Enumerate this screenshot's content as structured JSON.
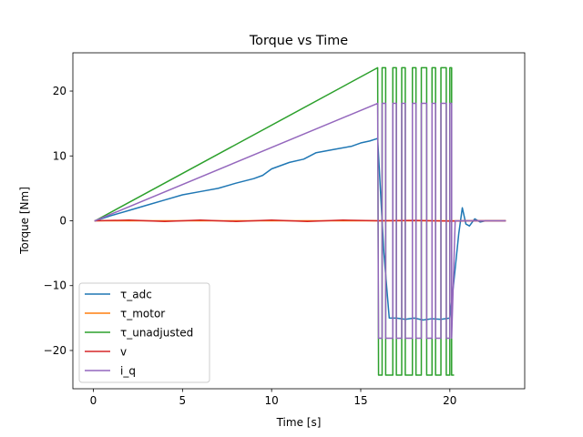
{
  "chart_data": {
    "type": "line",
    "title": "Torque vs Time",
    "xlabel": "Time [s]",
    "ylabel": "Torque [Nm]",
    "xlim": [
      -1.15,
      24.2
    ],
    "ylim": [
      -25.9,
      25.9
    ],
    "x_ticks": [
      0,
      5,
      10,
      15,
      20
    ],
    "y_ticks": [
      -20,
      -10,
      0,
      10,
      20
    ],
    "x_tick_labels": [
      "0",
      "5",
      "10",
      "15",
      "20"
    ],
    "y_tick_labels": [
      "−20",
      "−10",
      "0",
      "10",
      "20"
    ],
    "grid": false,
    "legend_position": "lower-left",
    "series": [
      {
        "name": "τ_adc",
        "color": "#1f77b4",
        "x": [
          0.1,
          1.0,
          2.0,
          3.0,
          4.0,
          5.0,
          6.0,
          7.0,
          8.0,
          9.0,
          9.5,
          10.0,
          11.0,
          11.8,
          12.5,
          13.5,
          14.5,
          15.0,
          15.5,
          15.95,
          16.1,
          16.3,
          16.6,
          17.0,
          17.5,
          18.0,
          18.5,
          19.0,
          19.5,
          20.0,
          20.2,
          20.5,
          20.7,
          20.9,
          21.1,
          21.4,
          21.7,
          22.0,
          22.5,
          23.1
        ],
        "y": [
          0,
          0.8,
          1.6,
          2.4,
          3.2,
          4.0,
          4.5,
          5.0,
          5.8,
          6.5,
          7.0,
          8.0,
          9.0,
          9.5,
          10.5,
          11.0,
          11.5,
          12.0,
          12.3,
          12.7,
          5.0,
          -5.0,
          -15.0,
          -15.0,
          -15.2,
          -15.0,
          -15.3,
          -15.1,
          -15.2,
          -15.0,
          -10.0,
          -2.0,
          2.0,
          -0.5,
          -0.8,
          0.3,
          -0.2,
          0,
          0,
          0
        ]
      },
      {
        "name": "τ_motor",
        "color": "#ff7f0e",
        "x": [
          0.1,
          23.1
        ],
        "y": [
          0,
          0
        ]
      },
      {
        "name": "τ_unadjusted",
        "color": "#2ca02c",
        "x": [
          0.1,
          15.95,
          16.0,
          16.2,
          16.2,
          16.4,
          16.4,
          16.8,
          16.8,
          17.0,
          17.0,
          17.3,
          17.3,
          17.5,
          17.5,
          17.9,
          17.9,
          18.1,
          18.1,
          18.4,
          18.4,
          18.7,
          18.7,
          19.0,
          19.0,
          19.2,
          19.2,
          19.5,
          19.5,
          19.8,
          19.8,
          20.0,
          20.0,
          20.1,
          20.1,
          20.2
        ],
        "y": [
          0,
          23.6,
          -23.8,
          -23.8,
          23.6,
          23.6,
          -23.8,
          -23.8,
          23.6,
          23.6,
          -23.8,
          -23.8,
          23.6,
          23.6,
          -23.8,
          -23.8,
          23.6,
          23.6,
          -23.8,
          -23.8,
          23.6,
          23.6,
          -23.8,
          -23.8,
          23.6,
          23.6,
          -23.8,
          -23.8,
          23.6,
          23.6,
          -23.8,
          -23.8,
          23.6,
          23.6,
          -23.8,
          -23.8
        ]
      },
      {
        "name": "v",
        "color": "#d62728",
        "x": [
          0.1,
          2.0,
          4.0,
          6.0,
          8.0,
          10.0,
          12.0,
          14.0,
          16.0,
          18.0,
          20.0,
          21.0,
          23.1
        ],
        "y": [
          0,
          0.1,
          -0.1,
          0.1,
          -0.1,
          0.1,
          -0.1,
          0.1,
          0,
          0.05,
          -0.05,
          0,
          0
        ]
      },
      {
        "name": "i_q",
        "color": "#9467bd",
        "x": [
          0.1,
          15.95,
          16.0,
          16.2,
          16.2,
          16.4,
          16.4,
          16.8,
          16.8,
          17.0,
          17.0,
          17.3,
          17.3,
          17.5,
          17.5,
          17.9,
          17.9,
          18.1,
          18.1,
          18.4,
          18.4,
          18.7,
          18.7,
          19.0,
          19.0,
          19.2,
          19.2,
          19.5,
          19.5,
          19.8,
          19.8,
          20.0,
          20.0,
          20.1,
          20.1,
          20.3,
          23.1
        ],
        "y": [
          0,
          18.1,
          -18.1,
          -18.1,
          18.1,
          18.1,
          -18.1,
          -18.1,
          18.1,
          18.1,
          -18.1,
          -18.1,
          18.1,
          18.1,
          -18.1,
          -18.1,
          18.1,
          18.1,
          -18.1,
          -18.1,
          18.1,
          18.1,
          -18.1,
          -18.1,
          18.1,
          18.1,
          -18.1,
          -18.1,
          18.1,
          18.1,
          -18.1,
          -18.1,
          18.1,
          18.1,
          -18.1,
          0,
          0
        ]
      }
    ]
  }
}
